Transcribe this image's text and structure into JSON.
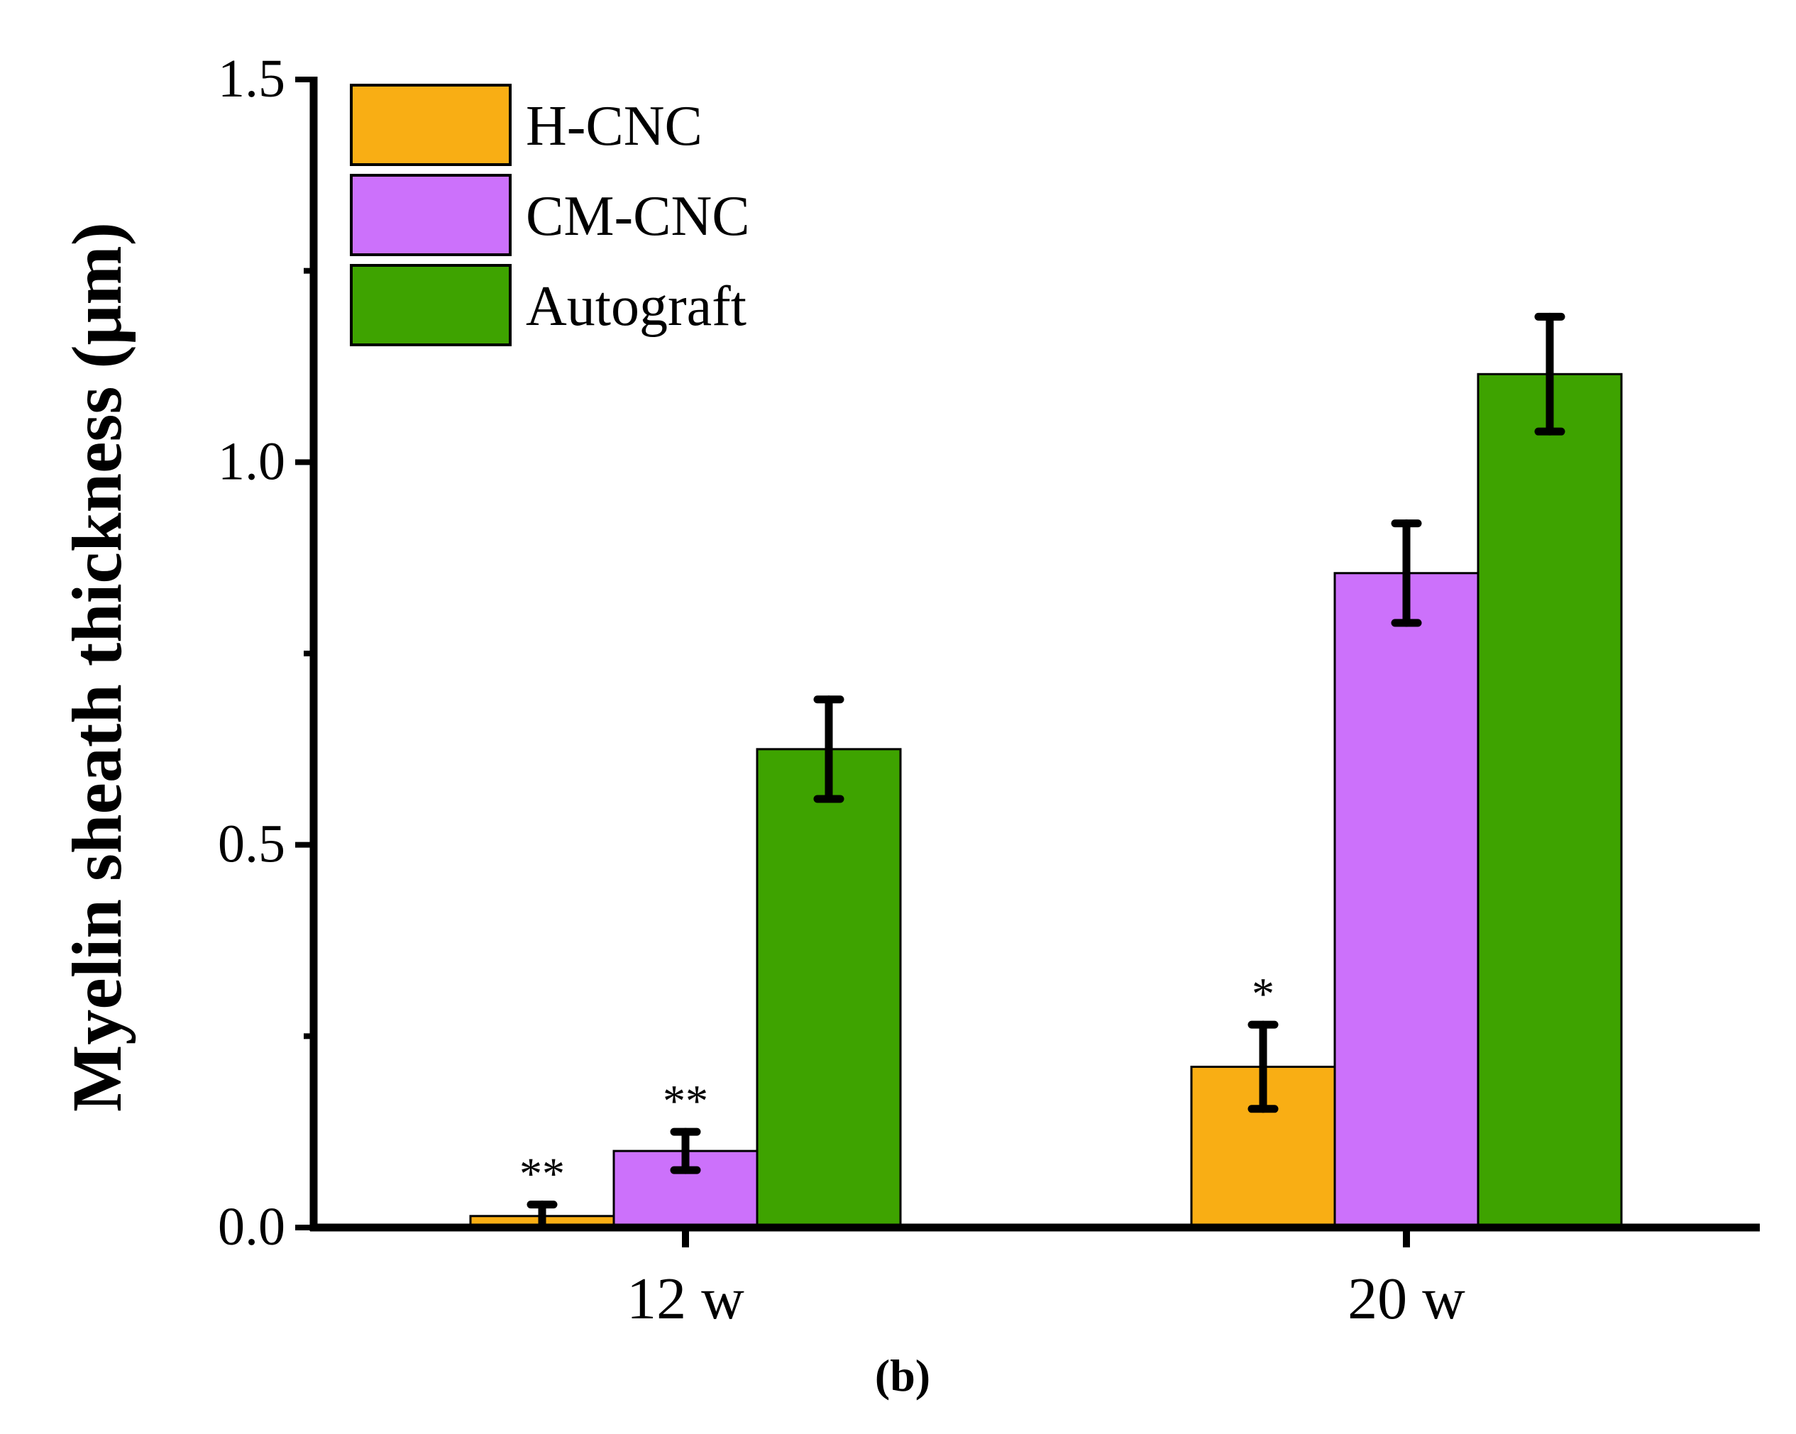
{
  "panel_label": "(b)",
  "colors": {
    "H-CNC": "#F9AE14",
    "CM-CNC": "#CC71FB",
    "Autograft": "#3EA300",
    "axis": "#000000"
  },
  "chart_data": {
    "type": "bar",
    "title": "",
    "xlabel": "",
    "ylabel": "Myelin sheath thickness (μm)",
    "ylim": [
      0,
      1.5
    ],
    "yticks": [
      "0.0",
      "0.5",
      "1.0",
      "1.5"
    ],
    "categories": [
      "12 w",
      "20 w"
    ],
    "legend_position": "top-left",
    "series": [
      {
        "name": "H-CNC",
        "values": [
          0.015,
          0.21
        ],
        "errors": [
          0.015,
          0.055
        ],
        "significance": [
          "**",
          "*"
        ]
      },
      {
        "name": "CM-CNC",
        "values": [
          0.1,
          0.855
        ],
        "errors": [
          0.025,
          0.065
        ],
        "significance": [
          "**",
          ""
        ]
      },
      {
        "name": "Autograft",
        "values": [
          0.625,
          1.115
        ],
        "errors": [
          0.065,
          0.075
        ],
        "significance": [
          "",
          ""
        ]
      }
    ]
  }
}
